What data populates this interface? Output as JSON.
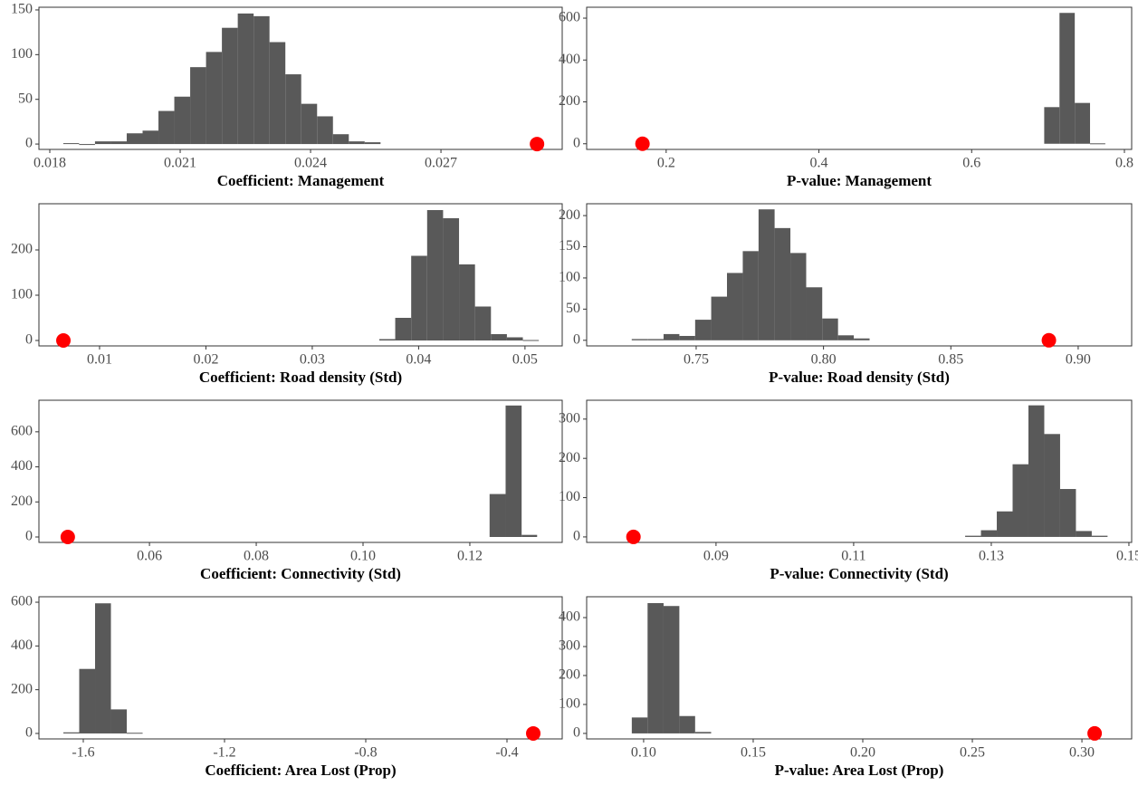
{
  "chart_data": [
    {
      "type": "histogram",
      "x_label": "Coefficient: Management",
      "color": "#595959",
      "bins": [
        0.01831,
        0.018675,
        0.01904,
        0.019405,
        0.01977,
        0.020135,
        0.0205,
        0.020865,
        0.02123,
        0.021595,
        0.02196,
        0.022325,
        0.02269,
        0.023055,
        0.02342,
        0.023785,
        0.02415,
        0.024515,
        0.02488,
        0.025245,
        0.02561
      ],
      "counts": [
        1,
        0,
        3,
        3,
        12,
        15,
        37,
        53,
        86,
        103,
        130,
        146,
        143,
        114,
        78,
        45,
        31,
        11,
        3,
        2
      ],
      "observed": {
        "x": 0.02921,
        "y": 0,
        "color": "#ff0000"
      },
      "xlim": [
        0.01775,
        0.02979
      ],
      "xticks": [
        0.018,
        0.021,
        0.024,
        0.027
      ],
      "ylim": [
        -6,
        153
      ],
      "yticks": [
        0,
        50,
        100,
        150
      ]
    },
    {
      "type": "histogram",
      "x_label": "P-value: Management",
      "color": "#595959",
      "bins": [
        0.695,
        0.715,
        0.735,
        0.755,
        0.775
      ],
      "counts": [
        175,
        625,
        195,
        2
      ],
      "observed": {
        "x": 0.169,
        "y": 0,
        "color": "#ff0000"
      },
      "xlim": [
        0.0959,
        0.8095
      ],
      "xticks": [
        0.2,
        0.4,
        0.6,
        0.8
      ],
      "ylim": [
        -27,
        652
      ],
      "yticks": [
        0,
        200,
        400,
        600
      ]
    },
    {
      "type": "histogram",
      "x_label": "Coefficient: Road density (Std)",
      "color": "#595959",
      "bins": [
        0.0363,
        0.0378,
        0.0393,
        0.0408,
        0.0423,
        0.0438,
        0.0453,
        0.0468,
        0.0483,
        0.0498,
        0.0513
      ],
      "counts": [
        3,
        50,
        187,
        288,
        270,
        168,
        75,
        14,
        7,
        1
      ],
      "observed": {
        "x": 0.0066,
        "y": 0,
        "color": "#ff0000"
      },
      "xlim": [
        0.0043,
        0.0535
      ],
      "xticks": [
        0.01,
        0.02,
        0.03,
        0.04,
        0.05
      ],
      "ylim": [
        -12,
        302
      ],
      "yticks": [
        0,
        100,
        200
      ]
    },
    {
      "type": "histogram",
      "x_label": "P-value: Road density (Std)",
      "color": "#595959",
      "bins": [
        0.7247,
        0.7309,
        0.7372,
        0.7434,
        0.7496,
        0.7559,
        0.7621,
        0.7683,
        0.7745,
        0.7808,
        0.787,
        0.7932,
        0.7995,
        0.8057,
        0.8119,
        0.8181
      ],
      "counts": [
        2,
        2,
        10,
        7,
        33,
        70,
        108,
        143,
        210,
        180,
        140,
        85,
        35,
        8,
        3
      ],
      "observed": {
        "x": 0.8885,
        "y": 0,
        "color": "#ff0000"
      },
      "xlim": [
        0.707,
        0.921
      ],
      "xticks": [
        0.75,
        {
          "value": 0.8,
          "label": "0.80"
        },
        0.85,
        {
          "value": 0.9,
          "label": "0.90"
        }
      ],
      "ylim": [
        -9,
        219
      ],
      "yticks": [
        0,
        50,
        100,
        150,
        200
      ]
    },
    {
      "type": "histogram",
      "x_label": "Coefficient: Connectivity (Std)",
      "color": "#595959",
      "bins": [
        0.1237,
        0.1267,
        0.1297,
        0.1326
      ],
      "counts": [
        245,
        750,
        12
      ],
      "observed": {
        "x": 0.0447,
        "y": 0,
        "color": "#ff0000"
      },
      "xlim": [
        0.0393,
        0.1373
      ],
      "xticks": [
        0.06,
        0.08,
        {
          "value": 0.1,
          "label": "0.10"
        },
        0.12
      ],
      "ylim": [
        -31,
        780
      ],
      "yticks": [
        0,
        200,
        400,
        600
      ]
    },
    {
      "type": "histogram",
      "x_label": "P-value: Connectivity (Std)",
      "color": "#595959",
      "bins": [
        0.1262,
        0.1285,
        0.1308,
        0.1331,
        0.1354,
        0.1377,
        0.14,
        0.1423,
        0.1446,
        0.1469
      ],
      "counts": [
        3,
        17,
        65,
        185,
        335,
        262,
        122,
        15,
        3
      ],
      "observed": {
        "x": 0.078,
        "y": 0,
        "color": "#ff0000"
      },
      "xlim": [
        0.0712,
        0.1504
      ],
      "xticks": [
        0.09,
        0.11,
        0.13,
        0.15
      ],
      "ylim": [
        -14,
        348
      ],
      "yticks": [
        0,
        100,
        200,
        300
      ]
    },
    {
      "type": "histogram",
      "x_label": "Coefficient: Area Lost (Prop)",
      "color": "#595959",
      "bins": [
        -1.6564,
        -1.6115,
        -1.5666,
        -1.5217,
        -1.4768,
        -1.4319
      ],
      "counts": [
        5,
        295,
        595,
        110,
        3
      ],
      "observed": {
        "x": -0.3256,
        "y": 0,
        "color": "#ff0000"
      },
      "xlim": [
        -1.7256,
        -0.2436
      ],
      "xticks": [
        -1.6,
        -1.2,
        -0.8,
        -0.4
      ],
      "ylim": [
        -25,
        625
      ],
      "yticks": [
        0,
        200,
        400,
        600
      ]
    },
    {
      "type": "histogram",
      "x_label": "P-value: Area Lost (Prop)",
      "color": "#595959",
      "bins": [
        0.0946,
        0.1018,
        0.1091,
        0.1163,
        0.1235,
        0.1308
      ],
      "counts": [
        55,
        450,
        440,
        60,
        5
      ],
      "observed": {
        "x": 0.3058,
        "y": 0,
        "color": "#ff0000"
      },
      "xlim": [
        0.074,
        0.3227
      ],
      "xticks": [
        {
          "value": 0.1,
          "label": "0.10"
        },
        0.15,
        {
          "value": 0.2,
          "label": "0.20"
        },
        0.25,
        {
          "value": 0.3,
          "label": "0.30"
        }
      ],
      "ylim": [
        -19,
        472
      ],
      "yticks": [
        0,
        100,
        200,
        300,
        400
      ]
    }
  ]
}
